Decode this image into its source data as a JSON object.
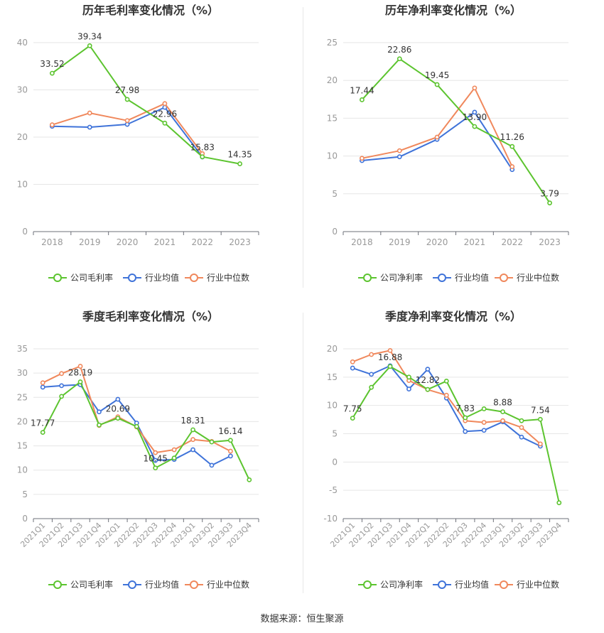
{
  "footer": {
    "label": "数据来源：",
    "source": "恒生聚源"
  },
  "colors": {
    "company": "#5cc42f",
    "avg": "#3f73d9",
    "median": "#f0885c",
    "grid": "#e6e6e6",
    "axis": "#999999"
  },
  "chart_data": [
    {
      "type": "line",
      "title": "历年毛利率变化情况（%）",
      "categories": [
        "2018",
        "2019",
        "2020",
        "2021",
        "2022",
        "2023"
      ],
      "ylim": [
        0,
        40
      ],
      "yticks": [
        0,
        10,
        20,
        30,
        40
      ],
      "grid": true,
      "legend_position": "bottom",
      "series": [
        {
          "name": "公司毛利率",
          "key": "company",
          "values": [
            33.52,
            39.34,
            27.98,
            22.96,
            15.83,
            14.35
          ],
          "labels": [
            "33.52",
            "39.34",
            "27.98",
            "22.96",
            "15.83",
            "14.35"
          ]
        },
        {
          "name": "行业均值",
          "key": "avg",
          "values": [
            22.3,
            22.1,
            22.7,
            26.3,
            15.8,
            null
          ]
        },
        {
          "name": "行业中位数",
          "key": "median",
          "values": [
            22.6,
            25.1,
            23.5,
            27.1,
            16.5,
            null
          ]
        }
      ]
    },
    {
      "type": "line",
      "title": "历年净利率变化情况（%）",
      "categories": [
        "2018",
        "2019",
        "2020",
        "2021",
        "2022",
        "2023"
      ],
      "ylim": [
        0,
        25
      ],
      "yticks": [
        0,
        5,
        10,
        15,
        20,
        25
      ],
      "grid": true,
      "legend_position": "bottom",
      "series": [
        {
          "name": "公司净利率",
          "key": "company",
          "values": [
            17.44,
            22.86,
            19.45,
            13.9,
            11.26,
            3.79
          ],
          "labels": [
            "17.44",
            "22.86",
            "19.45",
            "13.90",
            "11.26",
            "3.79"
          ]
        },
        {
          "name": "行业均值",
          "key": "avg",
          "values": [
            9.4,
            9.9,
            12.2,
            15.8,
            8.2,
            null
          ]
        },
        {
          "name": "行业中位数",
          "key": "median",
          "values": [
            9.7,
            10.7,
            12.5,
            19.0,
            8.6,
            null
          ]
        }
      ]
    },
    {
      "type": "line",
      "title": "季度毛利率变化情况（%）",
      "categories": [
        "2021Q1",
        "2021Q2",
        "2021Q3",
        "2021Q4",
        "2022Q1",
        "2022Q2",
        "2022Q3",
        "2022Q4",
        "2023Q1",
        "2023Q2",
        "2023Q3",
        "2023Q4"
      ],
      "ylim": [
        0,
        35
      ],
      "yticks": [
        0,
        5,
        10,
        15,
        20,
        25,
        30,
        35
      ],
      "grid": true,
      "legend_position": "bottom",
      "series": [
        {
          "name": "公司毛利率",
          "key": "company",
          "values": [
            17.77,
            25.2,
            28.19,
            19.3,
            20.69,
            19.0,
            10.45,
            12.5,
            18.31,
            15.8,
            16.14,
            8.0
          ],
          "labels": [
            "17.77",
            null,
            "28.19",
            null,
            "20.69",
            null,
            "10.45",
            null,
            "18.31",
            null,
            "16.14",
            null
          ]
        },
        {
          "name": "行业均值",
          "key": "avg",
          "values": [
            27.1,
            27.4,
            27.6,
            22.0,
            24.6,
            19.7,
            12.0,
            12.2,
            14.2,
            11.0,
            12.9,
            null
          ]
        },
        {
          "name": "行业中位数",
          "key": "median",
          "values": [
            28.0,
            29.9,
            31.4,
            19.2,
            21.0,
            18.9,
            13.6,
            14.2,
            16.3,
            15.9,
            13.9,
            null
          ]
        }
      ]
    },
    {
      "type": "line",
      "title": "季度净利率变化情况（%）",
      "categories": [
        "2021Q1",
        "2021Q2",
        "2021Q3",
        "2021Q4",
        "2022Q1",
        "2022Q2",
        "2022Q3",
        "2022Q4",
        "2023Q1",
        "2023Q2",
        "2023Q3",
        "2023Q4"
      ],
      "ylim": [
        -10,
        20
      ],
      "yticks": [
        -10,
        -5,
        0,
        5,
        10,
        15,
        20
      ],
      "grid": true,
      "legend_position": "bottom",
      "series": [
        {
          "name": "公司净利率",
          "key": "company",
          "values": [
            7.75,
            13.2,
            16.88,
            15.0,
            12.82,
            14.3,
            7.83,
            9.4,
            8.88,
            7.3,
            7.54,
            -7.2
          ],
          "labels": [
            "7.75",
            null,
            "16.88",
            null,
            "12.82",
            null,
            "7.83",
            null,
            "8.88",
            null,
            "7.54",
            null
          ]
        },
        {
          "name": "行业均值",
          "key": "avg",
          "values": [
            16.6,
            15.5,
            17.0,
            12.9,
            16.4,
            11.3,
            5.4,
            5.6,
            7.1,
            4.4,
            2.8,
            null
          ]
        },
        {
          "name": "行业中位数",
          "key": "median",
          "values": [
            17.7,
            19.0,
            19.7,
            14.4,
            12.8,
            11.8,
            7.3,
            7.0,
            7.3,
            6.1,
            3.2,
            null
          ]
        }
      ]
    }
  ]
}
